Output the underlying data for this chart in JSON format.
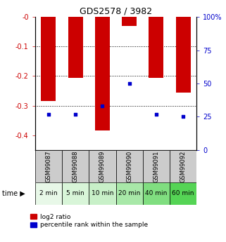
{
  "title": "GDS2578 / 3982",
  "samples": [
    "GSM99087",
    "GSM99088",
    "GSM99089",
    "GSM99090",
    "GSM99091",
    "GSM99092"
  ],
  "time_labels": [
    "2 min",
    "5 min",
    "10 min",
    "20 min",
    "40 min",
    "60 min"
  ],
  "log2_ratio": [
    -0.285,
    -0.205,
    -0.385,
    -0.03,
    -0.205,
    -0.255
  ],
  "percentile_rank": [
    27,
    27,
    33,
    50,
    27,
    25
  ],
  "ylim_left": [
    -0.45,
    0.0
  ],
  "ylim_right": [
    0,
    100
  ],
  "yticks_left": [
    0.0,
    -0.1,
    -0.2,
    -0.3,
    -0.4
  ],
  "yticks_right": [
    0,
    25,
    50,
    75,
    100
  ],
  "bar_color": "#cc0000",
  "dot_color": "#0000cc",
  "bg_color": "#ffffff",
  "time_bg_colors": [
    "#e8f8e8",
    "#d8f5d8",
    "#c8f0c8",
    "#a8e8a8",
    "#80de80",
    "#55d455"
  ],
  "sample_bg_color": "#cccccc",
  "bar_width": 0.55,
  "legend_log2_label": "log2 ratio",
  "legend_pct_label": "percentile rank within the sample",
  "ylabel_left_color": "#cc0000",
  "ylabel_right_color": "#0000cc",
  "title_fontsize": 9,
  "tick_fontsize": 7,
  "sample_fontsize": 6,
  "time_fontsize": 6.5
}
